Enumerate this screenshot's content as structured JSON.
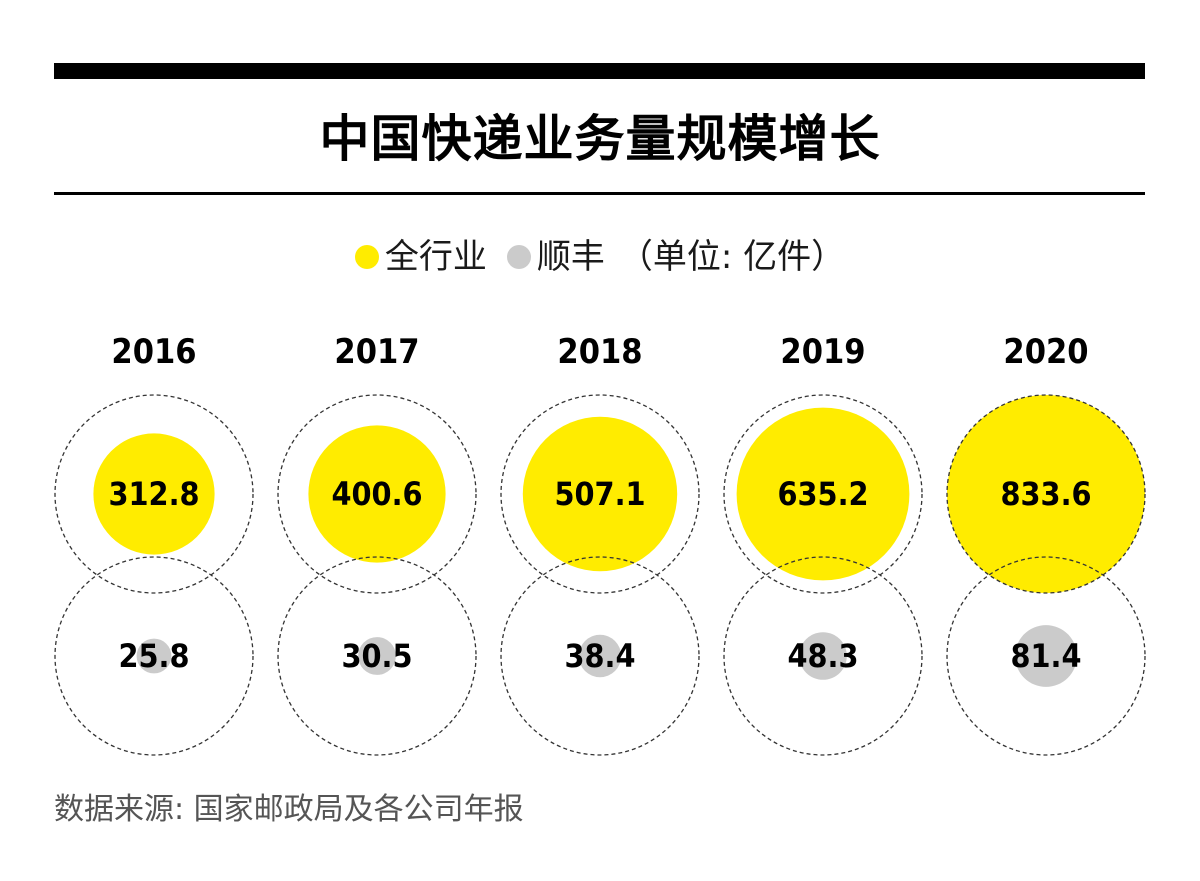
{
  "title": "中国快递业务量规模增长",
  "legend": {
    "industry_label": "全行业",
    "sf_label": "顺丰",
    "unit": "（单位: 亿件）"
  },
  "source": "数据来源: 国家邮政局及各公司年报",
  "colors": {
    "industry": "#FFEC00",
    "sf": "#CBCBCB",
    "text": "#000000",
    "dashed_outline": "#333333"
  },
  "chart_data": {
    "type": "bubble",
    "title": "中国快递业务量规模增长",
    "unit": "亿件",
    "categories": [
      "2016",
      "2017",
      "2018",
      "2019",
      "2020"
    ],
    "series": [
      {
        "name": "全行业",
        "values": [
          312.8,
          400.6,
          507.1,
          635.2,
          833.6
        ]
      },
      {
        "name": "顺丰",
        "values": [
          25.8,
          30.5,
          38.4,
          48.3,
          81.4
        ]
      }
    ],
    "value_labels": {
      "全行业": [
        "312.8",
        "400.6",
        "507.1",
        "635.2",
        "833.6"
      ],
      "顺丰": [
        "25.8",
        "30.5",
        "38.4",
        "48.3",
        "81.4"
      ]
    },
    "reference_max": 833.6,
    "grid": false,
    "legend_position": "top-center"
  }
}
